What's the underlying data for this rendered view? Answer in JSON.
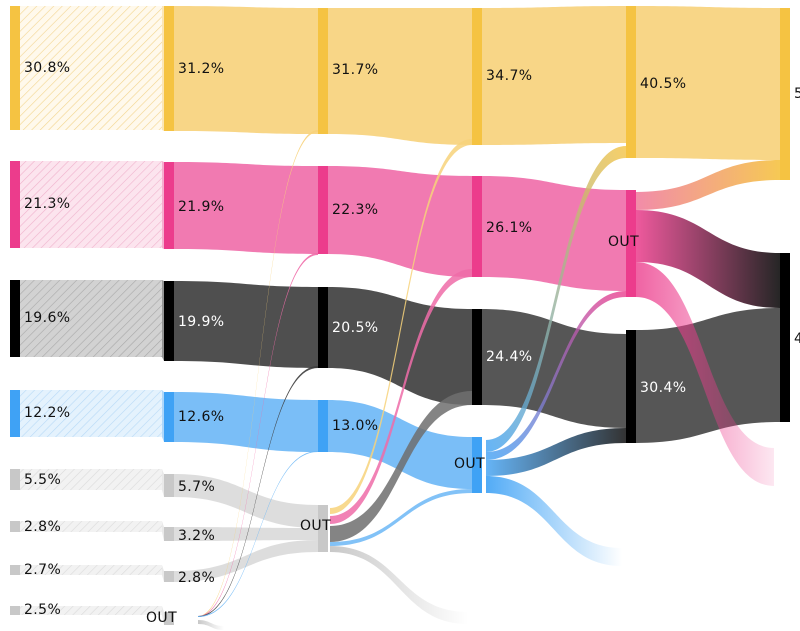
{
  "chart_data": {
    "type": "sankey",
    "title": "",
    "colors": {
      "yellow": "#F5C342",
      "pink": "#EC3C8C",
      "black": "#000000",
      "blue": "#3FA2F5",
      "gray": "#C8C8C8",
      "light_gray": "#D2D2D2"
    },
    "stages": [
      {
        "name": "stage-1",
        "nodes": [
          {
            "id": "s1-yellow",
            "label": "30.8%",
            "value": 30.8,
            "color": "yellow",
            "style": "hatched"
          },
          {
            "id": "s1-pink",
            "label": "21.3%",
            "value": 21.3,
            "color": "pink",
            "style": "hatched"
          },
          {
            "id": "s1-black",
            "label": "19.6%",
            "value": 19.6,
            "color": "black",
            "style": "hatched"
          },
          {
            "id": "s1-blue",
            "label": "12.2%",
            "value": 12.2,
            "color": "blue",
            "style": "hatched"
          },
          {
            "id": "s1-c5",
            "label": "5.5%",
            "value": 5.5,
            "color": "gray",
            "style": "hatched"
          },
          {
            "id": "s1-c6",
            "label": "2.8%",
            "value": 2.8,
            "color": "gray",
            "style": "hatched"
          },
          {
            "id": "s1-c7",
            "label": "2.7%",
            "value": 2.7,
            "color": "gray",
            "style": "hatched"
          },
          {
            "id": "s1-c8",
            "label": "2.5%",
            "value": 2.5,
            "color": "gray",
            "style": "hatched"
          }
        ]
      },
      {
        "name": "stage-2",
        "nodes": [
          {
            "id": "s2-yellow",
            "label": "31.2%",
            "value": 31.2,
            "color": "yellow",
            "style": "solid"
          },
          {
            "id": "s2-pink",
            "label": "21.9%",
            "value": 21.9,
            "color": "pink",
            "style": "solid"
          },
          {
            "id": "s2-black",
            "label": "19.9%",
            "value": 19.9,
            "color": "black",
            "style": "solid"
          },
          {
            "id": "s2-blue",
            "label": "12.6%",
            "value": 12.6,
            "color": "blue",
            "style": "solid"
          },
          {
            "id": "s2-c5",
            "label": "5.7%",
            "value": 5.7,
            "color": "gray",
            "style": "solid"
          },
          {
            "id": "s2-c6",
            "label": "3.2%",
            "value": 3.2,
            "color": "gray",
            "style": "solid"
          },
          {
            "id": "s2-c7",
            "label": "2.8%",
            "value": 2.8,
            "color": "gray",
            "style": "solid"
          },
          {
            "id": "s2-out",
            "label": "OUT",
            "value": null,
            "color": "gray",
            "style": "out"
          }
        ]
      },
      {
        "name": "stage-3",
        "nodes": [
          {
            "id": "s3-yellow",
            "label": "31.7%",
            "value": 31.7,
            "color": "yellow",
            "style": "solid"
          },
          {
            "id": "s3-pink",
            "label": "22.3%",
            "value": 22.3,
            "color": "pink",
            "style": "solid"
          },
          {
            "id": "s3-black",
            "label": "20.5%",
            "value": 20.5,
            "color": "black",
            "style": "solid"
          },
          {
            "id": "s3-blue",
            "label": "13.0%",
            "value": 13.0,
            "color": "blue",
            "style": "solid"
          },
          {
            "id": "s3-out",
            "label": "OUT",
            "value": null,
            "color": "gray",
            "style": "out"
          }
        ]
      },
      {
        "name": "stage-4",
        "nodes": [
          {
            "id": "s4-yellow",
            "label": "34.7%",
            "value": 34.7,
            "color": "yellow",
            "style": "solid"
          },
          {
            "id": "s4-pink",
            "label": "26.1%",
            "value": 26.1,
            "color": "pink",
            "style": "solid"
          },
          {
            "id": "s4-black",
            "label": "24.4%",
            "value": 24.4,
            "color": "black",
            "style": "solid"
          },
          {
            "id": "s4-out",
            "label": "OUT",
            "value": null,
            "color": "blue",
            "style": "out"
          }
        ]
      },
      {
        "name": "stage-5",
        "nodes": [
          {
            "id": "s5-yellow",
            "label": "40.5%",
            "value": 40.5,
            "color": "yellow",
            "style": "solid"
          },
          {
            "id": "s5-out",
            "label": "OUT",
            "value": null,
            "color": "pink",
            "style": "out"
          },
          {
            "id": "s5-black",
            "label": "30.4%",
            "value": 30.4,
            "color": "black",
            "style": "solid"
          }
        ]
      },
      {
        "name": "stage-6",
        "nodes": [
          {
            "id": "s6-yellow",
            "label": "5",
            "value": null,
            "color": "yellow",
            "style": "solid"
          },
          {
            "id": "s6-black",
            "label": "4",
            "value": null,
            "color": "black",
            "style": "solid"
          }
        ]
      }
    ],
    "links": [
      {
        "from": "s1-yellow",
        "to": "s2-yellow",
        "color": "yellow"
      },
      {
        "from": "s1-pink",
        "to": "s2-pink",
        "color": "pink"
      },
      {
        "from": "s1-black",
        "to": "s2-black",
        "color": "black"
      },
      {
        "from": "s1-blue",
        "to": "s2-blue",
        "color": "blue"
      },
      {
        "from": "s1-c5",
        "to": "s2-c5",
        "color": "gray"
      },
      {
        "from": "s1-c6",
        "to": "s2-c6",
        "color": "gray"
      },
      {
        "from": "s1-c7",
        "to": "s2-c7",
        "color": "gray"
      },
      {
        "from": "s1-c8",
        "to": "s2-out",
        "color": "gray"
      },
      {
        "from": "s2-yellow",
        "to": "s3-yellow",
        "color": "yellow"
      },
      {
        "from": "s2-pink",
        "to": "s3-pink",
        "color": "pink"
      },
      {
        "from": "s2-black",
        "to": "s3-black",
        "color": "black"
      },
      {
        "from": "s2-blue",
        "to": "s3-blue",
        "color": "blue"
      },
      {
        "from": "s2-c5",
        "to": "s3-out",
        "color": "gray"
      },
      {
        "from": "s2-c6",
        "to": "s3-out",
        "color": "gray"
      },
      {
        "from": "s2-c7",
        "to": "s3-out",
        "color": "gray"
      },
      {
        "from": "s2-out",
        "to": "s3-yellow",
        "color": "yellow",
        "thin": true
      },
      {
        "from": "s2-out",
        "to": "s3-pink",
        "color": "pink",
        "thin": true
      },
      {
        "from": "s2-out",
        "to": "s3-black",
        "color": "black",
        "thin": true
      },
      {
        "from": "s2-out",
        "to": "s3-blue",
        "color": "blue",
        "thin": true
      },
      {
        "from": "s2-out",
        "to": "exit-2",
        "color": "gray",
        "thin": true
      },
      {
        "from": "s3-yellow",
        "to": "s4-yellow",
        "color": "yellow"
      },
      {
        "from": "s3-pink",
        "to": "s4-pink",
        "color": "pink"
      },
      {
        "from": "s3-black",
        "to": "s4-black",
        "color": "black"
      },
      {
        "from": "s3-blue",
        "to": "s4-out",
        "color": "blue"
      },
      {
        "from": "s3-out",
        "to": "s4-yellow",
        "color": "yellow"
      },
      {
        "from": "s3-out",
        "to": "s4-pink",
        "color": "pink"
      },
      {
        "from": "s3-out",
        "to": "s4-black",
        "color": "black"
      },
      {
        "from": "s3-out",
        "to": "s4-out",
        "color": "blue"
      },
      {
        "from": "s3-out",
        "to": "exit-3",
        "color": "gray"
      },
      {
        "from": "s4-yellow",
        "to": "s5-yellow",
        "color": "yellow"
      },
      {
        "from": "s4-pink",
        "to": "s5-out",
        "color": "pink"
      },
      {
        "from": "s4-black",
        "to": "s5-black",
        "color": "black"
      },
      {
        "from": "s4-out",
        "to": "s5-yellow",
        "color": "yellow"
      },
      {
        "from": "s4-out",
        "to": "s5-out",
        "color": "pink"
      },
      {
        "from": "s4-out",
        "to": "s5-black",
        "color": "black"
      },
      {
        "from": "s4-out",
        "to": "exit-4",
        "color": "blue"
      },
      {
        "from": "s5-yellow",
        "to": "s6-yellow",
        "color": "yellow"
      },
      {
        "from": "s5-out",
        "to": "s6-yellow",
        "color": "pink"
      },
      {
        "from": "s5-out",
        "to": "s6-black",
        "color": "pink"
      },
      {
        "from": "s5-black",
        "to": "s6-black",
        "color": "black"
      },
      {
        "from": "s5-out",
        "to": "exit-5",
        "color": "pink"
      }
    ]
  }
}
